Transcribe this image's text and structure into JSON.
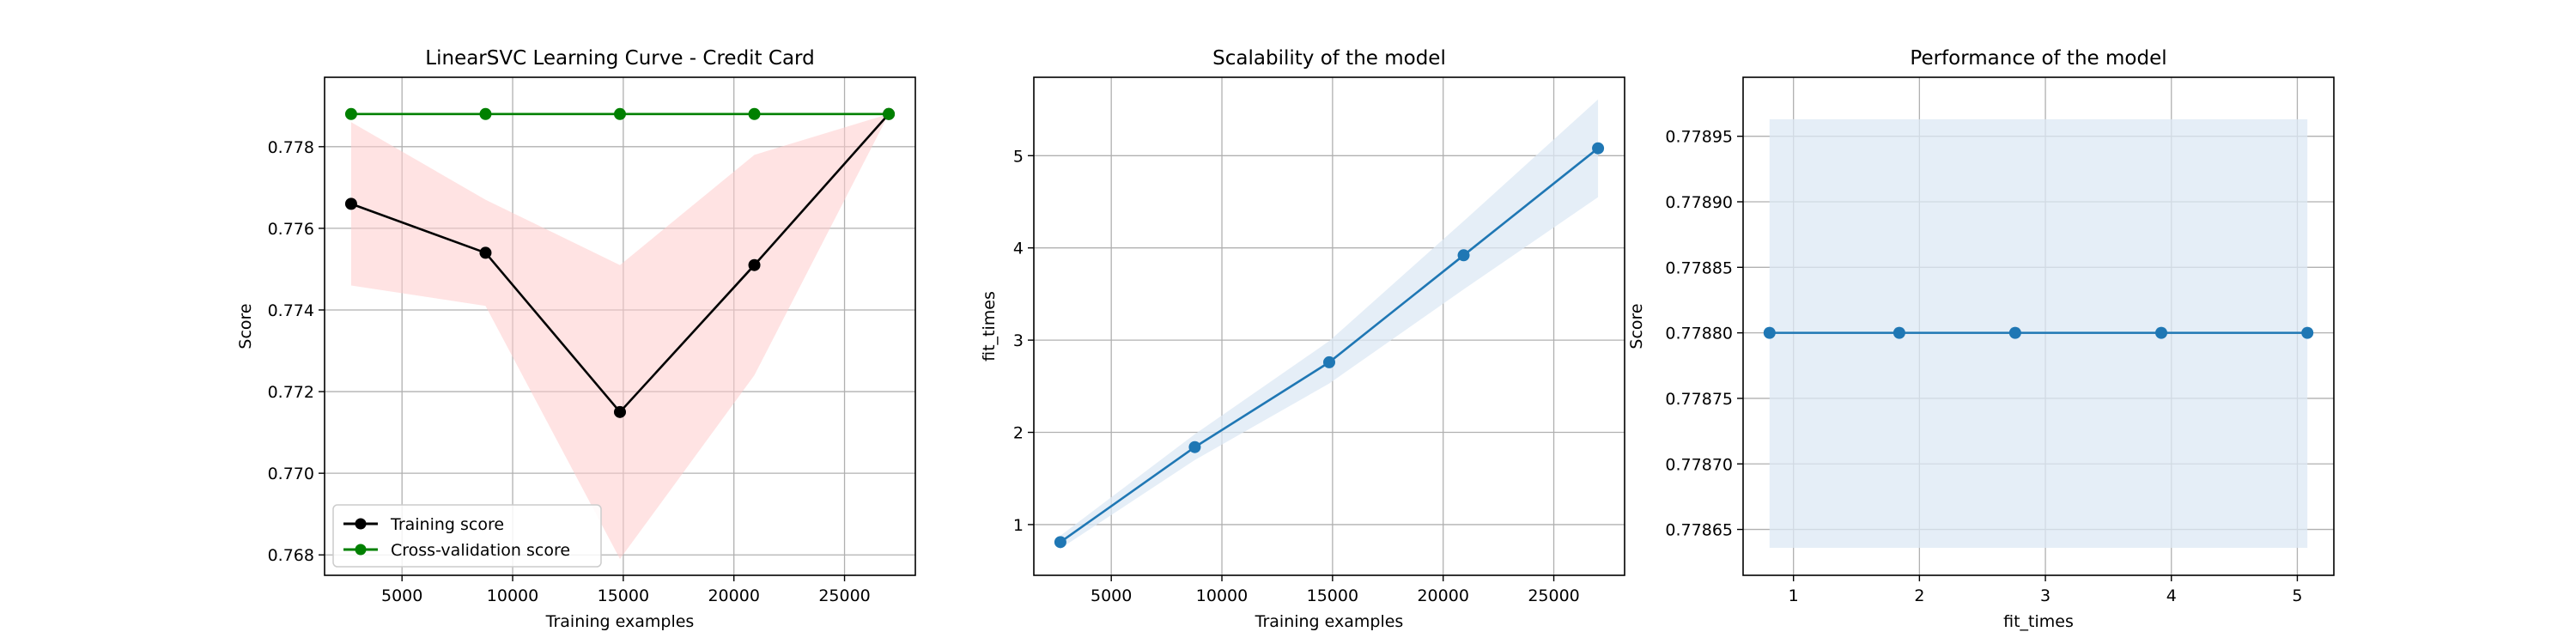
{
  "colors": {
    "train_line": "#000000",
    "train_band": "#ffcccc",
    "cv_line": "#008000",
    "cv_band": "#ccffcc",
    "model_line": "#1f77b4",
    "model_band": "#dce8f4",
    "grid": "#b0b0b0"
  },
  "chart_data": [
    {
      "type": "line",
      "title": "LinearSVC Learning Curve - Credit Card",
      "xlabel": "Training examples",
      "ylabel": "Score",
      "xlim": [
        1500,
        28200
      ],
      "ylim": [
        0.7675,
        0.7797
      ],
      "xticks": [
        5000,
        10000,
        15000,
        20000,
        25000
      ],
      "yticks": [
        0.768,
        0.77,
        0.772,
        0.774,
        0.776,
        0.778
      ],
      "xtick_labels": [
        "5000",
        "10000",
        "15000",
        "20000",
        "25000"
      ],
      "ytick_labels": [
        "0.768",
        "0.770",
        "0.772",
        "0.774",
        "0.776",
        "0.778"
      ],
      "grid": true,
      "legend_position": "lower-left",
      "x": [
        2700,
        8775,
        14850,
        20925,
        27000
      ],
      "series": [
        {
          "name": "Training score",
          "color": "black",
          "values": [
            0.7766,
            0.7754,
            0.7715,
            0.7751,
            0.7788
          ],
          "band_lower": [
            0.7746,
            0.7741,
            0.7679,
            0.7724,
            0.7788
          ],
          "band_upper": [
            0.7786,
            0.7767,
            0.7751,
            0.7778,
            0.7788
          ]
        },
        {
          "name": "Cross-validation score",
          "color": "green",
          "values": [
            0.7788,
            0.7788,
            0.7788,
            0.7788,
            0.7788
          ],
          "band_lower": [
            0.77877,
            0.77877,
            0.77877,
            0.77877,
            0.77877
          ],
          "band_upper": [
            0.77883,
            0.77883,
            0.77883,
            0.77883,
            0.77883
          ]
        }
      ]
    },
    {
      "type": "line",
      "title": "Scalability of the model",
      "xlabel": "Training examples",
      "ylabel": "fit_times",
      "xlim": [
        1500,
        28200
      ],
      "ylim": [
        0.45,
        5.85
      ],
      "xticks": [
        5000,
        10000,
        15000,
        20000,
        25000
      ],
      "yticks": [
        1,
        2,
        3,
        4,
        5
      ],
      "xtick_labels": [
        "5000",
        "10000",
        "15000",
        "20000",
        "25000"
      ],
      "ytick_labels": [
        "1",
        "2",
        "3",
        "4",
        "5"
      ],
      "grid": true,
      "x": [
        2700,
        8775,
        14850,
        20925,
        27000
      ],
      "series": [
        {
          "values": [
            0.81,
            1.84,
            2.76,
            3.92,
            5.08
          ],
          "band_lower": [
            0.74,
            1.7,
            2.53,
            3.55,
            4.55
          ],
          "band_upper": [
            0.88,
            1.98,
            2.99,
            4.29,
            5.61
          ]
        }
      ]
    },
    {
      "type": "line",
      "title": "Performance of the model",
      "xlabel": "fit_times",
      "ylabel": "Score",
      "xlim": [
        0.6,
        5.29
      ],
      "ylim": [
        0.778615,
        0.778995
      ],
      "xticks": [
        1,
        2,
        3,
        4,
        5
      ],
      "yticks": [
        0.77865,
        0.7787,
        0.77875,
        0.7788,
        0.77885,
        0.7789,
        0.77895
      ],
      "xtick_labels": [
        "1",
        "2",
        "3",
        "4",
        "5"
      ],
      "ytick_labels": [
        "0.77865",
        "0.77870",
        "0.77875",
        "0.77880",
        "0.77885",
        "0.77890",
        "0.77895"
      ],
      "grid": true,
      "x": [
        0.81,
        1.84,
        2.76,
        3.92,
        5.08
      ],
      "series": [
        {
          "values": [
            0.7788,
            0.7788,
            0.7788,
            0.7788,
            0.7788
          ],
          "band_lower": [
            0.778636,
            0.778636,
            0.778636,
            0.778636,
            0.778636
          ],
          "band_upper": [
            0.778963,
            0.778963,
            0.778963,
            0.778963,
            0.778963
          ]
        }
      ]
    }
  ]
}
